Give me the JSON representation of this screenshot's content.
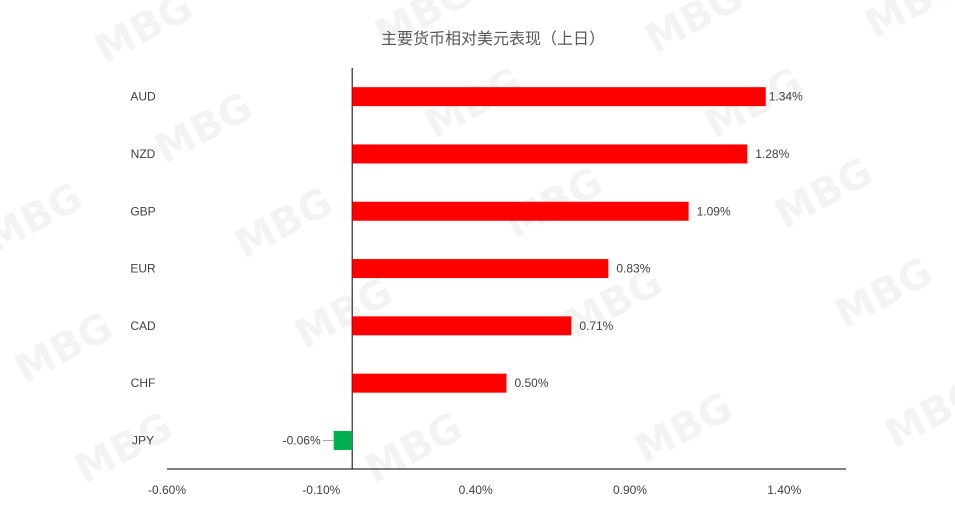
{
  "chart_data": {
    "type": "bar",
    "orientation": "horizontal",
    "title": "主要货币相对美元表现（上日）",
    "categories": [
      "AUD",
      "NZD",
      "GBP",
      "EUR",
      "CAD",
      "CHF",
      "JPY"
    ],
    "values": [
      1.34,
      1.28,
      1.09,
      0.83,
      0.71,
      0.5,
      -0.06
    ],
    "value_labels": [
      "1.34%",
      "1.28%",
      "1.09%",
      "0.83%",
      "0.71%",
      "0.50%",
      "-0.06%"
    ],
    "x_ticks": [
      -0.6,
      -0.1,
      0.4,
      0.9,
      1.4
    ],
    "x_tick_labels": [
      "-0.60%",
      "-0.10%",
      "0.40%",
      "0.90%",
      "1.40%"
    ],
    "xlim": [
      -0.6,
      1.6
    ],
    "xlabel": "",
    "ylabel": "",
    "grid": false,
    "legend": false,
    "colors": {
      "positive": "#ff0000",
      "negative": "#00b050",
      "axis": "#000000",
      "text": "#404040"
    }
  },
  "watermark": {
    "text": "MBG"
  }
}
